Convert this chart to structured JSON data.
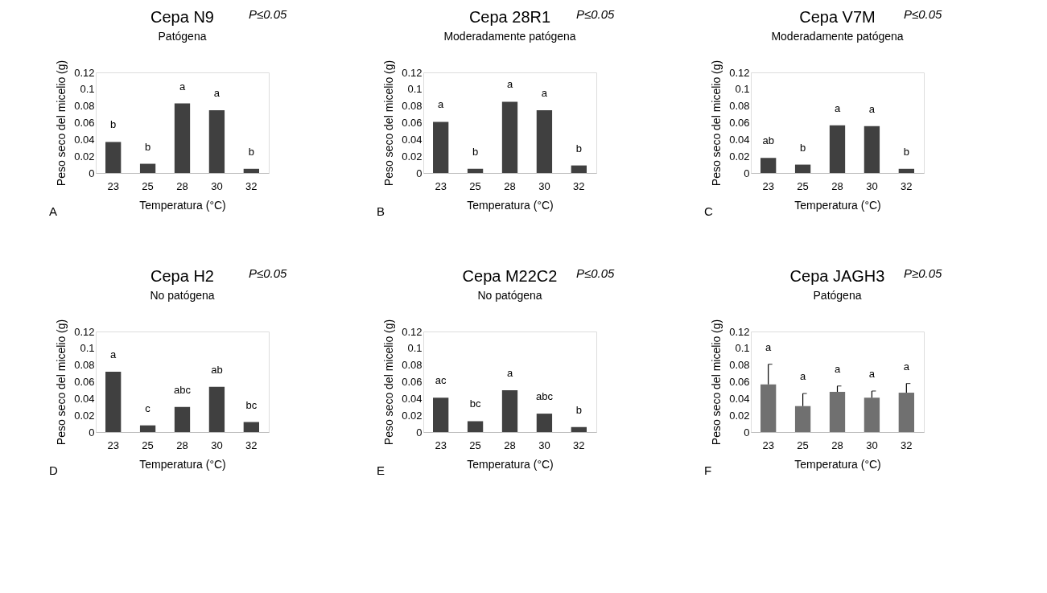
{
  "chart_data": [
    {
      "type": "bar",
      "title": "Cepa N9",
      "subtitle": "Patógena",
      "xlabel": "Temperatura (°C)",
      "ylabel": "Peso seco del micelio (g)",
      "categories": [
        "23",
        "25",
        "28",
        "30",
        "32"
      ],
      "values": [
        0.037,
        0.011,
        0.083,
        0.075,
        0.005
      ],
      "color": "#404040",
      "ylim": [
        0,
        0.12
      ],
      "yticks": [
        0,
        0.02,
        0.04,
        0.06,
        0.08,
        0.1,
        0.12
      ],
      "grid": false,
      "annotations": [
        "P≤0.05",
        "A",
        {
          "text": "b",
          "x": "23",
          "y": 0.037
        },
        {
          "text": "b",
          "x": "25",
          "y": 0.011
        },
        {
          "text": "a",
          "x": "28",
          "y": 0.083
        },
        {
          "text": "a",
          "x": "30",
          "y": 0.075
        },
        {
          "text": "b",
          "x": "32",
          "y": 0.005
        }
      ]
    },
    {
      "type": "bar",
      "title": "Cepa 28R1",
      "subtitle": "Moderadamente patógena",
      "xlabel": "Temperatura (°C)",
      "ylabel": "Peso seco del micelio (g)",
      "categories": [
        "23",
        "25",
        "28",
        "30",
        "32"
      ],
      "values": [
        0.061,
        0.005,
        0.085,
        0.075,
        0.009
      ],
      "color": "#404040",
      "ylim": [
        0,
        0.12
      ],
      "yticks": [
        0,
        0.02,
        0.04,
        0.06,
        0.08,
        0.1,
        0.12
      ],
      "grid": false,
      "annotations": [
        "P≤0.05",
        "B",
        {
          "text": "a",
          "x": "23",
          "y": 0.061
        },
        {
          "text": "b",
          "x": "25",
          "y": 0.005
        },
        {
          "text": "a",
          "x": "28",
          "y": 0.085
        },
        {
          "text": "a",
          "x": "30",
          "y": 0.075
        },
        {
          "text": "b",
          "x": "32",
          "y": 0.009
        }
      ]
    },
    {
      "type": "bar",
      "title": "Cepa V7M",
      "subtitle": "Moderadamente patógena",
      "xlabel": "Temperatura (°C)",
      "ylabel": "Peso seco del micelio (g)",
      "categories": [
        "23",
        "25",
        "28",
        "30",
        "32"
      ],
      "values": [
        0.018,
        0.01,
        0.057,
        0.056,
        0.005
      ],
      "color": "#404040",
      "ylim": [
        0,
        0.12
      ],
      "yticks": [
        0,
        0.02,
        0.04,
        0.06,
        0.08,
        0.1,
        0.12
      ],
      "grid": false,
      "annotations": [
        "P≤0.05",
        "C",
        {
          "text": "ab",
          "x": "23",
          "y": 0.018
        },
        {
          "text": "b",
          "x": "25",
          "y": 0.01
        },
        {
          "text": "a",
          "x": "28",
          "y": 0.057
        },
        {
          "text": "a",
          "x": "30",
          "y": 0.056
        },
        {
          "text": "b",
          "x": "32",
          "y": 0.005
        }
      ]
    },
    {
      "type": "bar",
      "title": "Cepa H2",
      "subtitle": "No patógena",
      "xlabel": "Temperatura (°C)",
      "ylabel": "Peso seco del micelio (g)",
      "categories": [
        "23",
        "25",
        "28",
        "30",
        "32"
      ],
      "values": [
        0.072,
        0.008,
        0.03,
        0.054,
        0.012
      ],
      "color": "#404040",
      "ylim": [
        0,
        0.12
      ],
      "yticks": [
        0,
        0.02,
        0.04,
        0.06,
        0.08,
        0.1,
        0.12
      ],
      "grid": false,
      "annotations": [
        "P≤0.05",
        "D",
        {
          "text": "a",
          "x": "23",
          "y": 0.072
        },
        {
          "text": "c",
          "x": "25",
          "y": 0.008
        },
        {
          "text": "abc",
          "x": "28",
          "y": 0.03
        },
        {
          "text": "ab",
          "x": "30",
          "y": 0.054
        },
        {
          "text": "bc",
          "x": "32",
          "y": 0.012
        }
      ]
    },
    {
      "type": "bar",
      "title": "Cepa M22C2",
      "subtitle": "No patógena",
      "xlabel": "Temperatura (°C)",
      "ylabel": "Peso seco del micelio (g)",
      "categories": [
        "23",
        "25",
        "28",
        "30",
        "32"
      ],
      "values": [
        0.041,
        0.013,
        0.05,
        0.022,
        0.006
      ],
      "color": "#404040",
      "ylim": [
        0,
        0.12
      ],
      "yticks": [
        0,
        0.02,
        0.04,
        0.06,
        0.08,
        0.1,
        0.12
      ],
      "grid": false,
      "annotations": [
        "P≤0.05",
        "E",
        {
          "text": "ac",
          "x": "23",
          "y": 0.041
        },
        {
          "text": "bc",
          "x": "25",
          "y": 0.013
        },
        {
          "text": "a",
          "x": "28",
          "y": 0.05
        },
        {
          "text": "abc",
          "x": "30",
          "y": 0.022
        },
        {
          "text": "b",
          "x": "32",
          "y": 0.006
        }
      ]
    },
    {
      "type": "bar",
      "title": "Cepa JAGH3",
      "subtitle": "Patógena",
      "xlabel": "Temperatura (°C)",
      "ylabel": "Peso seco del micelio (g)",
      "categories": [
        "23",
        "25",
        "28",
        "30",
        "32"
      ],
      "values": [
        0.057,
        0.031,
        0.048,
        0.041,
        0.047
      ],
      "errors": [
        [
          0.057,
          0.081
        ],
        [
          0.031,
          0.046
        ],
        [
          0.048,
          0.055
        ],
        [
          0.041,
          0.049
        ],
        [
          0.047,
          0.058
        ]
      ],
      "color": "#707070",
      "ylim": [
        0,
        0.12
      ],
      "yticks": [
        0,
        0.02,
        0.04,
        0.06,
        0.08,
        0.1,
        0.12
      ],
      "grid": false,
      "annotations": [
        "P≥0.05",
        "F",
        {
          "text": "a",
          "x": "23",
          "y": 0.081
        },
        {
          "text": "a",
          "x": "25",
          "y": 0.046
        },
        {
          "text": "a",
          "x": "28",
          "y": 0.055
        },
        {
          "text": "a",
          "x": "30",
          "y": 0.049
        },
        {
          "text": "a",
          "x": "32",
          "y": 0.058
        }
      ]
    }
  ]
}
